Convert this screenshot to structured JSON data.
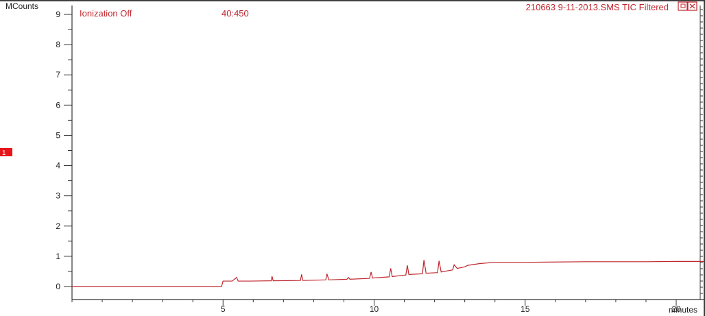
{
  "chart_data": {
    "type": "line",
    "title": "210663 9-11-2013.SMS TIC Filtered",
    "ylabel": "MCounts",
    "xlabel": "minutes",
    "xlim": [
      0,
      21
    ],
    "ylim": [
      -0.5,
      9.2
    ],
    "x_ticks": [
      5,
      10,
      15,
      20
    ],
    "y_ticks": [
      0,
      1,
      2,
      3,
      4,
      5,
      6,
      7,
      8,
      9
    ],
    "grid": false,
    "legend": "none",
    "annotations": {
      "ionization_label": "Ionization Off",
      "mass_range": "40:450",
      "marker_label": "1"
    },
    "colors": {
      "trace": "#c0262d",
      "annotation": "#c0262d",
      "marker_bg": "#e8141b",
      "axis": "#333333"
    },
    "series": [
      {
        "values": [
          [
            0.0,
            0.0
          ],
          [
            4.95,
            0.0
          ],
          [
            5.0,
            0.18
          ],
          [
            5.3,
            0.18
          ],
          [
            5.45,
            0.3
          ],
          [
            5.5,
            0.18
          ],
          [
            5.9,
            0.18
          ],
          [
            6.6,
            0.19
          ],
          [
            6.62,
            0.34
          ],
          [
            6.66,
            0.19
          ],
          [
            7.56,
            0.2
          ],
          [
            7.6,
            0.4
          ],
          [
            7.64,
            0.2
          ],
          [
            8.4,
            0.22
          ],
          [
            8.44,
            0.42
          ],
          [
            8.5,
            0.22
          ],
          [
            9.1,
            0.24
          ],
          [
            9.15,
            0.3
          ],
          [
            9.2,
            0.24
          ],
          [
            9.85,
            0.27
          ],
          [
            9.9,
            0.48
          ],
          [
            9.95,
            0.28
          ],
          [
            10.5,
            0.32
          ],
          [
            10.55,
            0.6
          ],
          [
            10.6,
            0.33
          ],
          [
            11.05,
            0.38
          ],
          [
            11.1,
            0.7
          ],
          [
            11.15,
            0.4
          ],
          [
            11.6,
            0.42
          ],
          [
            11.65,
            0.88
          ],
          [
            11.72,
            0.44
          ],
          [
            12.1,
            0.46
          ],
          [
            12.15,
            0.85
          ],
          [
            12.22,
            0.48
          ],
          [
            12.6,
            0.55
          ],
          [
            12.65,
            0.72
          ],
          [
            12.75,
            0.6
          ],
          [
            13.0,
            0.65
          ],
          [
            13.1,
            0.7
          ],
          [
            13.5,
            0.76
          ],
          [
            14.0,
            0.8
          ],
          [
            14.5,
            0.8
          ],
          [
            15.0,
            0.8
          ],
          [
            16.0,
            0.81
          ],
          [
            17.0,
            0.82
          ],
          [
            18.0,
            0.82
          ],
          [
            19.0,
            0.82
          ],
          [
            20.0,
            0.83
          ],
          [
            21.0,
            0.83
          ]
        ]
      }
    ]
  }
}
